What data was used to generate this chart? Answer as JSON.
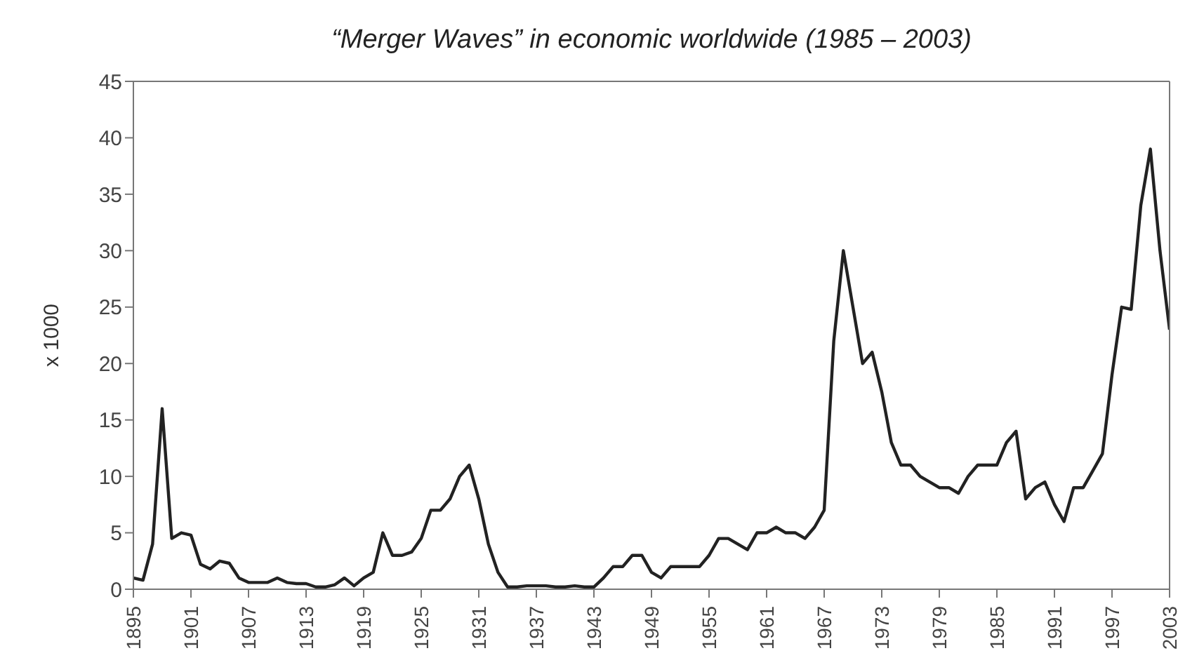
{
  "chart_data": {
    "type": "line",
    "title": "“Merger Waves” in economic worldwide (1985 – 2003)",
    "ylabel": "x 1000",
    "x": [
      1895,
      1896,
      1897,
      1898,
      1899,
      1900,
      1901,
      1902,
      1903,
      1904,
      1905,
      1906,
      1907,
      1908,
      1909,
      1910,
      1911,
      1912,
      1913,
      1914,
      1915,
      1916,
      1917,
      1918,
      1919,
      1920,
      1921,
      1922,
      1923,
      1924,
      1925,
      1926,
      1927,
      1928,
      1929,
      1930,
      1931,
      1932,
      1933,
      1934,
      1935,
      1936,
      1937,
      1938,
      1939,
      1940,
      1941,
      1942,
      1943,
      1944,
      1945,
      1946,
      1947,
      1948,
      1949,
      1950,
      1951,
      1952,
      1953,
      1954,
      1955,
      1956,
      1957,
      1958,
      1959,
      1960,
      1961,
      1962,
      1963,
      1964,
      1965,
      1966,
      1967,
      1968,
      1969,
      1970,
      1971,
      1972,
      1973,
      1974,
      1975,
      1976,
      1977,
      1978,
      1979,
      1980,
      1981,
      1982,
      1983,
      1984,
      1985,
      1986,
      1987,
      1988,
      1989,
      1990,
      1991,
      1992,
      1993,
      1994,
      1995,
      1996,
      1997,
      1998,
      1999,
      2000,
      2001,
      2002,
      2003
    ],
    "series": [
      {
        "color": "#222222",
        "values": [
          1,
          0.8,
          4,
          16,
          4.5,
          5,
          4.8,
          2.2,
          1.8,
          2.5,
          2.3,
          1,
          0.6,
          0.6,
          0.6,
          1,
          0.6,
          0.5,
          0.5,
          0.2,
          0.2,
          0.4,
          1,
          0.3,
          1,
          1.5,
          5,
          3,
          3,
          3.3,
          4.5,
          7,
          7,
          8,
          10,
          11,
          8,
          4,
          1.5,
          0.2,
          0.2,
          0.3,
          0.3,
          0.3,
          0.2,
          0.2,
          0.3,
          0.2,
          0.2,
          1,
          2,
          2,
          3,
          3,
          1.5,
          1,
          2,
          2,
          2,
          2,
          3,
          4.5,
          4.5,
          4,
          3.5,
          5,
          5,
          5.5,
          5,
          5,
          4.5,
          5.5,
          7,
          22,
          30,
          25,
          20,
          21,
          17.5,
          13,
          11,
          11,
          10,
          9.5,
          9,
          9,
          8.5,
          10,
          11,
          11,
          11,
          13,
          14,
          8,
          9,
          9.5,
          7.5,
          6,
          9,
          9,
          10.5,
          12,
          19,
          25,
          24.8,
          34,
          39,
          30,
          23
        ]
      }
    ],
    "xlim": [
      1895,
      2003
    ],
    "xticks": [
      1895,
      1901,
      1907,
      1913,
      1919,
      1925,
      1931,
      1937,
      1943,
      1949,
      1955,
      1961,
      1967,
      1973,
      1979,
      1985,
      1991,
      1997,
      2003
    ],
    "ylim": [
      0,
      45
    ],
    "yticks": [
      0,
      5,
      10,
      15,
      20,
      25,
      30,
      35,
      40,
      45
    ],
    "marker": "none",
    "line_style": "solid"
  }
}
